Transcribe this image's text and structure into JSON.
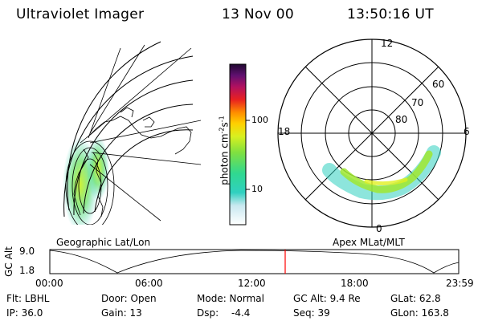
{
  "header": {
    "instrument": "Ultraviolet Imager",
    "date": "13 Nov 00",
    "time": "13:50:16 UT"
  },
  "colorbar": {
    "unit_label": "photon cm",
    "unit_sup1": "-2",
    "unit_mid": "s",
    "unit_sup2": "-1",
    "ticks": [
      "100",
      "10"
    ]
  },
  "geo_panel": {
    "caption": "Geographic Lat/Lon"
  },
  "polar_panel": {
    "caption": "Apex MLat/MLT",
    "mlt_labels": {
      "top": "12",
      "left": "18",
      "right": "6",
      "bottom": "0"
    },
    "lat_labels": [
      "60",
      "70",
      "80"
    ]
  },
  "timeline": {
    "ylabel": "GC Alt",
    "ytick_top": "9.0",
    "ytick_bottom": "1.8",
    "xticks": [
      "00:00",
      "06:00",
      "12:00",
      "18:00",
      "23:59"
    ],
    "marker_color": "#ff0000"
  },
  "status": {
    "filter": "Flt: LBHL",
    "ip": "IP: 36.0",
    "door": "Door: Open",
    "gain": "Gain: 13",
    "mode": "Mode: Normal",
    "dsp_label": "Dsp:",
    "dsp_value": "-4.4",
    "gc_alt": "GC Alt: 9.4 Re",
    "seq": "Seq: 39",
    "glat": "GLat:  62.8",
    "glon": "GLon: 163.8"
  }
}
